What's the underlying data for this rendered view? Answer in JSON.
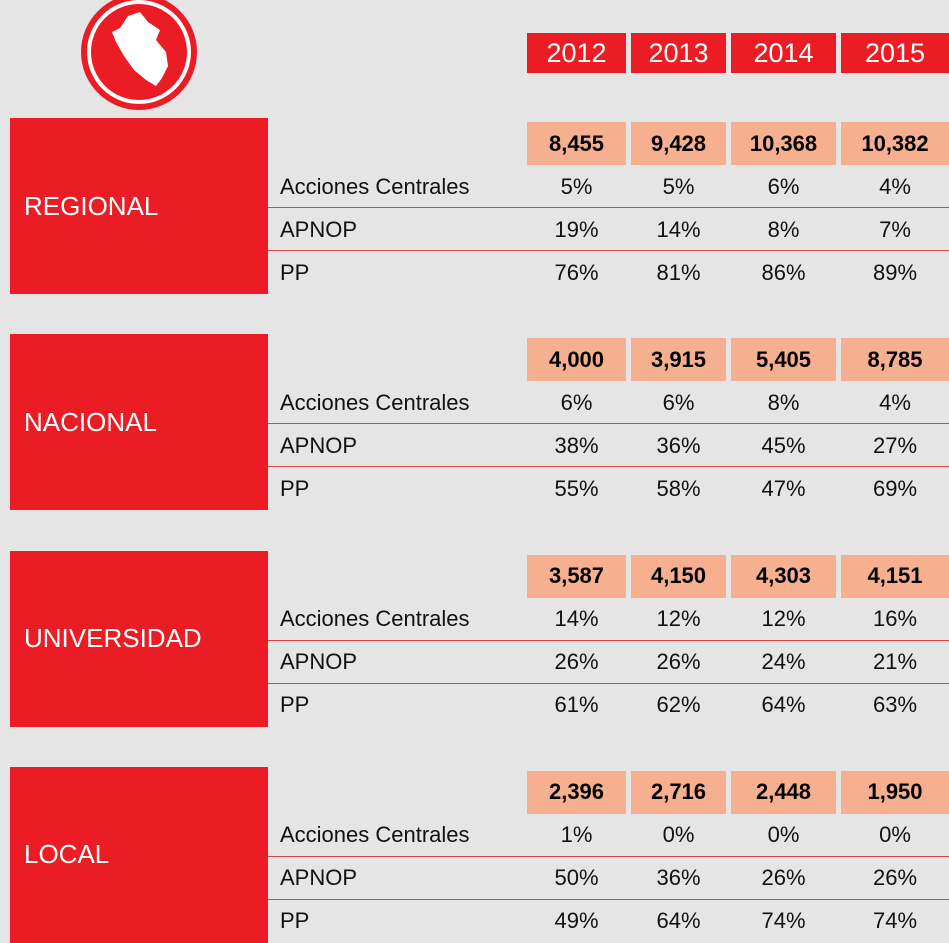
{
  "header": {
    "years": [
      "2012",
      "2013",
      "2014",
      "2015"
    ]
  },
  "sections": [
    {
      "name": "REGIONAL",
      "totals": [
        "8,455",
        "9,428",
        "10,368",
        "10,382"
      ],
      "rows": [
        {
          "label": "Acciones Centrales",
          "values": [
            "5%",
            "5%",
            "6%",
            "4%"
          ]
        },
        {
          "label": "APNOP",
          "values": [
            "19%",
            "14%",
            "8%",
            "7%"
          ]
        },
        {
          "label": "PP",
          "values": [
            "76%",
            "81%",
            "86%",
            "89%"
          ]
        }
      ]
    },
    {
      "name": "NACIONAL",
      "totals": [
        "4,000",
        "3,915",
        "5,405",
        "8,785"
      ],
      "rows": [
        {
          "label": "Acciones Centrales",
          "values": [
            "6%",
            "6%",
            "8%",
            "4%"
          ]
        },
        {
          "label": "APNOP",
          "values": [
            "38%",
            "36%",
            "45%",
            "27%"
          ]
        },
        {
          "label": "PP",
          "values": [
            "55%",
            "58%",
            "47%",
            "69%"
          ]
        }
      ]
    },
    {
      "name": "UNIVERSIDAD",
      "totals": [
        "3,587",
        "4,150",
        "4,303",
        "4,151"
      ],
      "rows": [
        {
          "label": "Acciones Centrales",
          "values": [
            "14%",
            "12%",
            "12%",
            "16%"
          ]
        },
        {
          "label": "APNOP",
          "values": [
            "26%",
            "26%",
            "24%",
            "21%"
          ]
        },
        {
          "label": "PP",
          "values": [
            "61%",
            "62%",
            "64%",
            "63%"
          ]
        }
      ]
    },
    {
      "name": "LOCAL",
      "totals": [
        "2,396",
        "2,716",
        "2,448",
        "1,950"
      ],
      "rows": [
        {
          "label": "Acciones Centrales",
          "values": [
            "1%",
            "0%",
            "0%",
            "0%"
          ]
        },
        {
          "label": "APNOP",
          "values": [
            "50%",
            "36%",
            "26%",
            "26%"
          ]
        },
        {
          "label": "PP",
          "values": [
            "49%",
            "64%",
            "74%",
            "74%"
          ]
        }
      ]
    }
  ]
}
